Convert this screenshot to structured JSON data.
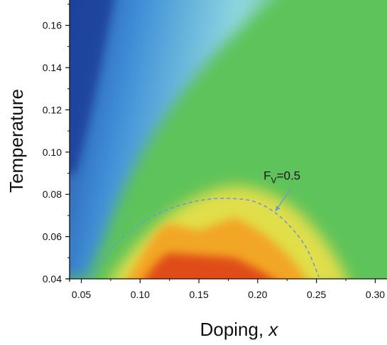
{
  "chart_data": {
    "type": "heatmap",
    "title": "",
    "xlabel": "Doping, ",
    "xlabel_var": "x",
    "ylabel": "Temperature",
    "xlim": [
      0.04,
      0.31
    ],
    "ylim": [
      0.04,
      0.172
    ],
    "x_ticks": [
      {
        "value": 0.05,
        "label": "0.05"
      },
      {
        "value": 0.1,
        "label": "0.10"
      },
      {
        "value": 0.15,
        "label": "0.15"
      },
      {
        "value": 0.2,
        "label": "0.20"
      },
      {
        "value": 0.25,
        "label": "0.25"
      },
      {
        "value": 0.3,
        "label": "0.30"
      }
    ],
    "y_ticks": [
      {
        "value": 0.04,
        "label": "0.04"
      },
      {
        "value": 0.06,
        "label": "0.06"
      },
      {
        "value": 0.08,
        "label": "0.08"
      },
      {
        "value": 0.1,
        "label": "0.10"
      },
      {
        "value": 0.12,
        "label": "0.12"
      },
      {
        "value": 0.14,
        "label": "0.14"
      },
      {
        "value": 0.16,
        "label": "0.16"
      }
    ],
    "grid": false,
    "colormap": [
      "#1f3f9a",
      "#3f8fd8",
      "#8fd8e0",
      "#5ec35a",
      "#e8e04a",
      "#f5a020",
      "#dd3c12"
    ],
    "regions": {
      "cold_region": {
        "description_colors": [
          "#1f3f9a",
          "#3f8fd8",
          "#8fd8e0"
        ]
      },
      "warm_dome_peak": [
        0.13,
        0.043
      ]
    },
    "contour": {
      "label_main": "F",
      "label_sub": "V",
      "label_value": "=0.5",
      "color": "#6b9bd1",
      "style": "dashed",
      "points": [
        [
          0.058,
          0.04
        ],
        [
          0.08,
          0.057
        ],
        [
          0.1,
          0.066
        ],
        [
          0.12,
          0.072
        ],
        [
          0.14,
          0.0758
        ],
        [
          0.16,
          0.0778
        ],
        [
          0.18,
          0.078
        ],
        [
          0.2,
          0.076
        ],
        [
          0.22,
          0.069
        ],
        [
          0.24,
          0.056
        ],
        [
          0.252,
          0.041
        ]
      ],
      "arrow_target": [
        0.215,
        0.072
      ]
    }
  }
}
